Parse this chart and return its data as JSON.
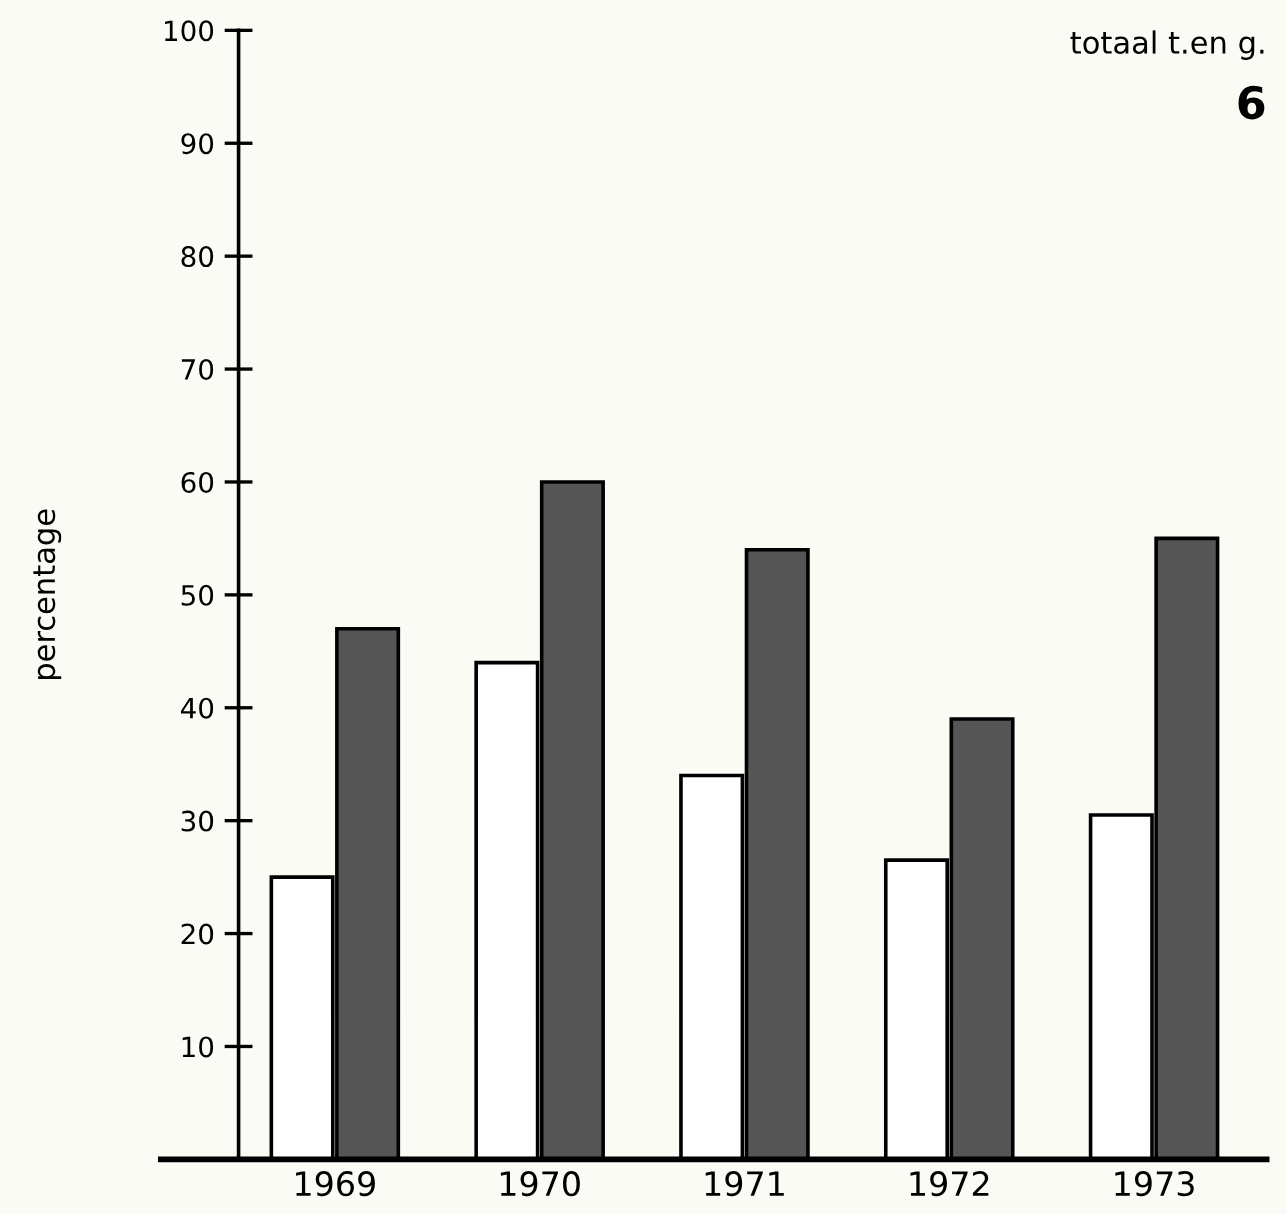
{
  "chart_data": {
    "type": "bar",
    "ylabel": "percentage",
    "annotations": [
      "totaal t.en g.",
      "6"
    ],
    "categories": [
      "1969",
      "1970",
      "1971",
      "1972",
      "1973"
    ],
    "series": [
      {
        "color": "#ffffff",
        "values": [
          25,
          44,
          34,
          26.5,
          30.5
        ]
      },
      {
        "color": "#555555",
        "values": [
          47,
          60,
          54,
          39,
          55
        ]
      }
    ],
    "ylim": [
      0,
      100
    ],
    "yticks": [
      10,
      20,
      30,
      40,
      50,
      60,
      70,
      80,
      90,
      100
    ],
    "grid": false,
    "legend": false
  }
}
